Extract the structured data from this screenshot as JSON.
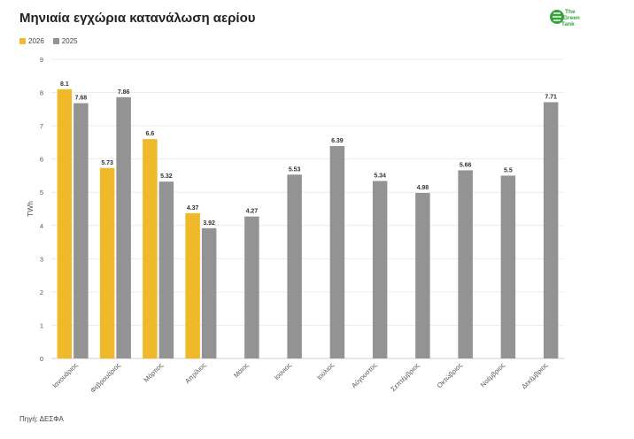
{
  "title": "Μηνιαία εγχώρια κατανάλωση αερίου",
  "source": "Πηγή: ΔΕΣΦΑ",
  "logo_text": "The Green Tank",
  "colors": {
    "series_2026": "#f0b929",
    "series_2025": "#939393",
    "logo_green": "#38a13c",
    "grid": "#ececec"
  },
  "chart_data": {
    "type": "bar",
    "title": "Μηνιαία εγχώρια κατανάλωση αερίου",
    "xlabel": "",
    "ylabel": "TWh",
    "ylim": [
      0,
      9
    ],
    "yticks": [
      0,
      1,
      2,
      3,
      4,
      5,
      6,
      7,
      8,
      9
    ],
    "grid": true,
    "legend_position": "top-left",
    "categories": [
      "Ιανουάριος",
      "Φεβρουάριος",
      "Μάρτιος",
      "Απρίλιος",
      "Μάιος",
      "Ιούνιος",
      "Ιούλιος",
      "Αύγουστος",
      "Σεπτέμβριος",
      "Οκτώβριος",
      "Νοέμβριος",
      "Δεκέμβριος"
    ],
    "series": [
      {
        "name": "2026",
        "color": "#f0b929",
        "values": [
          8.1,
          5.73,
          6.6,
          4.37,
          null,
          null,
          null,
          null,
          null,
          null,
          null,
          null
        ]
      },
      {
        "name": "2025",
        "color": "#939393",
        "values": [
          7.68,
          7.86,
          5.32,
          3.92,
          4.27,
          5.53,
          6.39,
          5.34,
          4.98,
          5.66,
          5.5,
          7.71
        ]
      }
    ]
  }
}
